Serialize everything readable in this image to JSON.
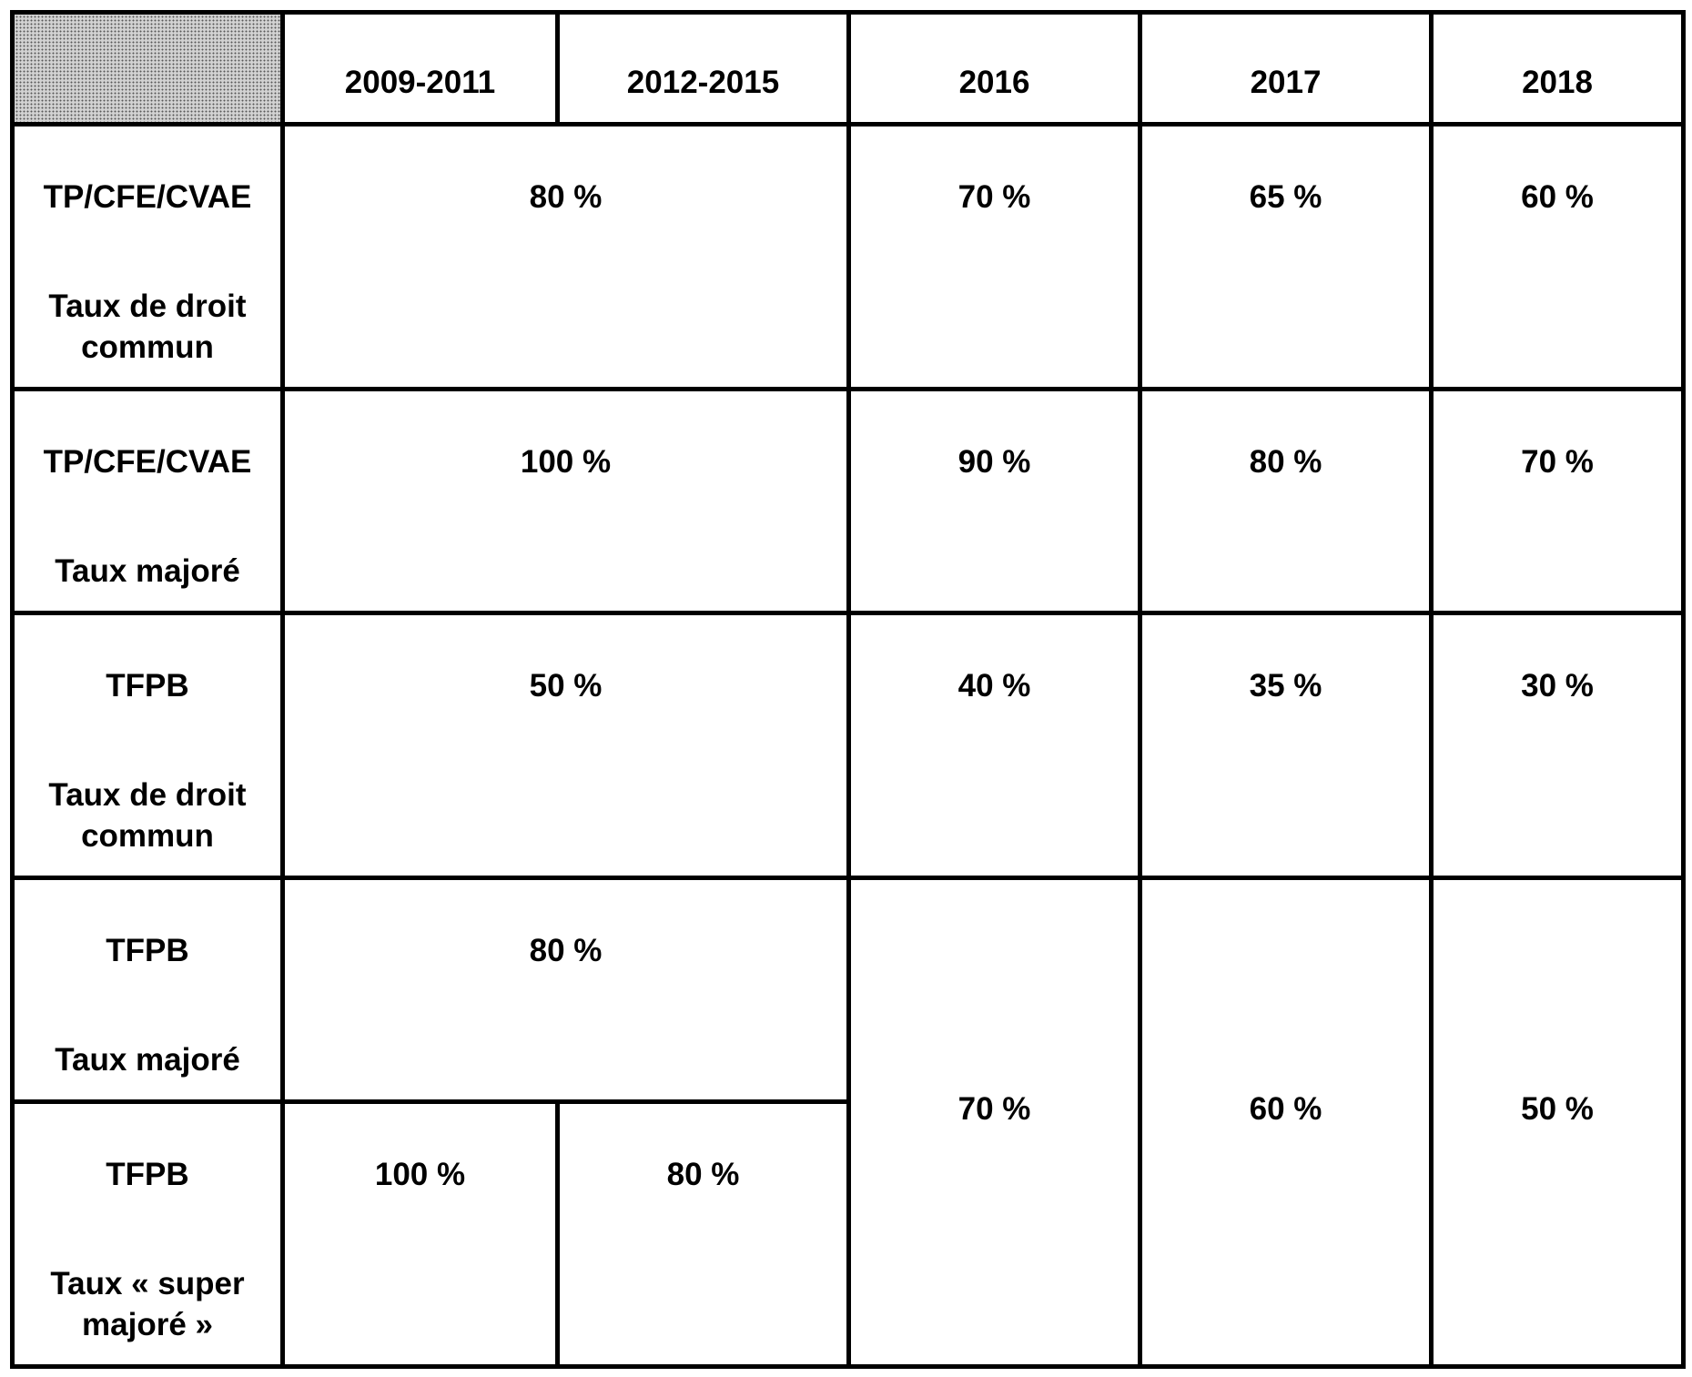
{
  "header": {
    "periods": [
      "2009-2011",
      "2012-2015",
      "2016",
      "2017",
      "2018"
    ]
  },
  "rows": [
    {
      "tax": "TP/CFE/CVAE",
      "rate_type": "Taux de droit commun",
      "values": {
        "p2009_2015": "80 %",
        "y2016": "70 %",
        "y2017": "65 %",
        "y2018": "60 %"
      }
    },
    {
      "tax": "TP/CFE/CVAE",
      "rate_type": "Taux majoré",
      "values": {
        "p2009_2015": "100 %",
        "y2016": "90 %",
        "y2017": "80 %",
        "y2018": "70 %"
      }
    },
    {
      "tax": "TFPB",
      "rate_type": "Taux de droit commun",
      "values": {
        "p2009_2015": "50 %",
        "y2016": "40 %",
        "y2017": "35 %",
        "y2018": "30 %"
      }
    },
    {
      "tax": "TFPB",
      "rate_type": "Taux majoré",
      "values": {
        "p2009_2015": "80 %"
      }
    },
    {
      "tax": "TFPB",
      "rate_type": "Taux « super majoré »",
      "values": {
        "p2009_2011": "100 %",
        "p2012_2015": "80 %"
      }
    }
  ],
  "merged_tfpb_majore": {
    "y2016": "70 %",
    "y2017": "60 %",
    "y2018": "50 %"
  }
}
